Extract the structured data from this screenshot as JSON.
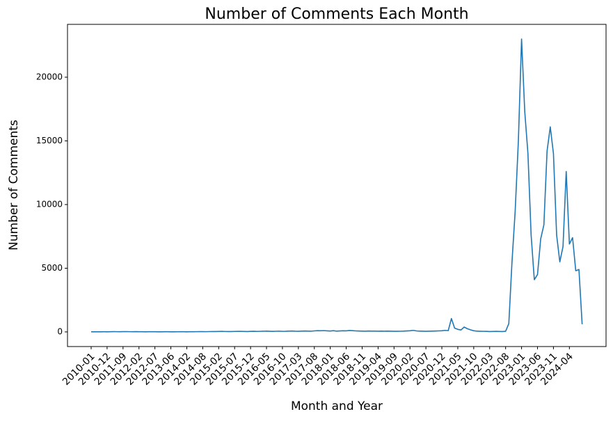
{
  "chart_data": {
    "type": "line",
    "title": "Number of Comments Each Month",
    "x_label": "Month and Year",
    "y_label": "Number of Comments",
    "color": "#1f77b4",
    "categories": [
      "2010-01",
      null,
      null,
      null,
      null,
      "2010-12",
      null,
      null,
      null,
      null,
      "2011-09",
      null,
      null,
      null,
      null,
      "2012-02",
      null,
      null,
      null,
      null,
      "2012-07",
      null,
      null,
      null,
      null,
      "2013-06",
      null,
      null,
      null,
      null,
      "2014-02",
      null,
      null,
      null,
      null,
      "2014-08",
      null,
      null,
      null,
      null,
      "2015-02",
      null,
      null,
      null,
      null,
      "2015-07",
      null,
      null,
      null,
      null,
      "2015-12",
      null,
      null,
      null,
      null,
      "2016-05",
      null,
      null,
      null,
      null,
      "2016-10",
      null,
      null,
      null,
      null,
      "2017-03",
      null,
      null,
      null,
      null,
      "2017-08",
      null,
      null,
      null,
      null,
      "2018-01",
      null,
      null,
      null,
      null,
      "2018-06",
      null,
      null,
      null,
      null,
      "2018-11",
      null,
      null,
      null,
      null,
      "2019-04",
      null,
      null,
      null,
      null,
      "2019-09",
      null,
      null,
      null,
      null,
      "2020-02",
      null,
      null,
      null,
      null,
      "2020-07",
      null,
      null,
      null,
      null,
      "2020-12",
      null,
      null,
      null,
      null,
      "2021-05",
      null,
      null,
      null,
      null,
      "2021-10",
      null,
      null,
      null,
      null,
      "2022-03",
      null,
      null,
      null,
      null,
      "2022-08",
      null,
      null,
      null,
      null,
      "2023-01",
      null,
      null,
      null,
      null,
      "2023-06",
      null,
      null,
      null,
      null,
      "2023-11",
      null,
      null,
      null,
      null,
      "2024-04",
      null,
      null,
      null,
      null
    ],
    "values": [
      5,
      8,
      6,
      10,
      12,
      9,
      15,
      20,
      18,
      14,
      22,
      25,
      18,
      15,
      20,
      16,
      12,
      10,
      14,
      18,
      12,
      10,
      8,
      15,
      12,
      10,
      9,
      11,
      14,
      12,
      10,
      12,
      15,
      18,
      20,
      22,
      18,
      25,
      30,
      28,
      35,
      40,
      32,
      30,
      28,
      38,
      45,
      40,
      35,
      30,
      42,
      50,
      38,
      45,
      55,
      60,
      48,
      40,
      52,
      58,
      45,
      50,
      62,
      70,
      55,
      48,
      60,
      72,
      65,
      58,
      80,
      95,
      90,
      100,
      85,
      70,
      95,
      60,
      75,
      90,
      85,
      110,
      95,
      80,
      70,
      60,
      55,
      70,
      65,
      60,
      55,
      60,
      58,
      65,
      55,
      50,
      48,
      52,
      60,
      75,
      90,
      120,
      80,
      60,
      55,
      50,
      58,
      65,
      70,
      80,
      90,
      120,
      100,
      1050,
      300,
      200,
      150,
      380,
      250,
      160,
      90,
      60,
      50,
      45,
      40,
      30,
      35,
      40,
      35,
      30,
      50,
      650,
      5500,
      9500,
      15000,
      23000,
      17300,
      14000,
      7600,
      4100,
      4500,
      7300,
      8400,
      14200,
      16100,
      14000,
      7600,
      5500,
      6700,
      12600,
      6900,
      7400,
      4800,
      4900,
      600
    ],
    "ylim": [
      -1150,
      24150
    ],
    "yticks": [
      0,
      5000,
      10000,
      15000,
      20000
    ]
  }
}
